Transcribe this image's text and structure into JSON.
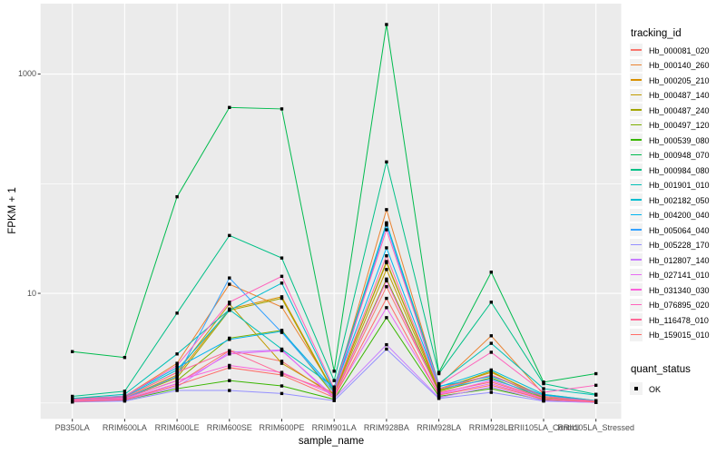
{
  "figure": {
    "background": "#FFFFFF",
    "panel_background": "#EBEBEB",
    "grid_color": "#FFFFFF",
    "tick_color": "#333333",
    "tick_label_color": "#4D4D4D",
    "point_color": "#000000"
  },
  "axes": {
    "x_title": "sample_name",
    "y_title": "FPKM + 1",
    "y_ticks": [
      {
        "label": "1000",
        "value": 1000
      },
      {
        "label": "10",
        "value": 10
      }
    ]
  },
  "legend": {
    "color_title": "tracking_id",
    "shape_title": "quant_status",
    "shape_items": [
      {
        "label": "OK"
      }
    ]
  },
  "chart_data": {
    "type": "line",
    "title": "",
    "xlabel": "sample_name",
    "ylabel": "FPKM + 1",
    "y_scale": "log10",
    "ylim": [
      0.72,
      4400
    ],
    "y_major_breaks": [
      10,
      1000
    ],
    "y_minor_breaks": [
      1,
      100
    ],
    "grid": true,
    "legend_position": "right",
    "point_shape": "filled-square",
    "quant_status_value": "OK",
    "categories": [
      "PB350LA",
      "RRIM600LA",
      "RRIM600LE",
      "RRIM600SE",
      "RRIM600PE",
      "RRIM901LA",
      "RRIM928BA",
      "RRIM928LA",
      "RRIM928LE",
      "RRII105LA_Control",
      "RRII105LA_Stressed"
    ],
    "series": [
      {
        "name": "Hb_000081_020",
        "color": "#F8766D",
        "values": [
          1.05,
          1.08,
          1.5,
          3.0,
          2.4,
          1.15,
          11.5,
          1.25,
          1.55,
          1.1,
          1.03
        ]
      },
      {
        "name": "Hb_000140_260",
        "color": "#EA8331",
        "values": [
          1.1,
          1.15,
          2.3,
          12.1,
          7.5,
          1.3,
          58,
          1.45,
          4.1,
          1.2,
          1.05
        ]
      },
      {
        "name": "Hb_000205_210",
        "color": "#D89000",
        "values": [
          1.06,
          1.1,
          1.8,
          7.2,
          9.3,
          1.25,
          19,
          1.35,
          1.9,
          1.15,
          1.03
        ]
      },
      {
        "name": "Hb_000487_140",
        "color": "#C09B00",
        "values": [
          1.08,
          1.12,
          1.9,
          8.0,
          2.3,
          1.2,
          16.5,
          1.3,
          1.8,
          1.12,
          1.03
        ]
      },
      {
        "name": "Hb_000487_240",
        "color": "#A3A500",
        "values": [
          1.05,
          1.1,
          1.7,
          7.0,
          9.0,
          1.22,
          19.5,
          1.32,
          1.95,
          1.1,
          1.02
        ]
      },
      {
        "name": "Hb_000497_120",
        "color": "#7CAE00",
        "values": [
          1.07,
          1.1,
          1.6,
          3.9,
          4.6,
          1.18,
          13.5,
          1.28,
          1.7,
          1.1,
          1.02
        ]
      },
      {
        "name": "Hb_000539_080",
        "color": "#39B600",
        "values": [
          1.03,
          1.06,
          1.35,
          1.6,
          1.43,
          1.08,
          6.0,
          1.15,
          1.35,
          1.06,
          1.01
        ]
      },
      {
        "name": "Hb_000948_070",
        "color": "#00BB4E",
        "values": [
          2.94,
          2.6,
          76,
          496,
          481,
          1.95,
          2830,
          1.9,
          15.6,
          1.55,
          1.85
        ]
      },
      {
        "name": "Hb_000984_080",
        "color": "#00C087",
        "values": [
          1.15,
          1.28,
          6.6,
          33.7,
          21,
          1.6,
          158,
          1.85,
          8.3,
          1.5,
          1.2
        ]
      },
      {
        "name": "Hb_001901_010",
        "color": "#00C0B5",
        "values": [
          1.1,
          1.2,
          2.8,
          7.1,
          3.1,
          1.4,
          44,
          1.5,
          3.5,
          1.35,
          1.18
        ]
      },
      {
        "name": "Hb_002182_050",
        "color": "#00BDD0",
        "values": [
          1.06,
          1.14,
          2.0,
          7.0,
          12.4,
          1.3,
          43,
          1.4,
          2.0,
          1.2,
          1.05
        ]
      },
      {
        "name": "Hb_004200_040",
        "color": "#00B4EF",
        "values": [
          1.08,
          1.16,
          2.1,
          3.8,
          4.5,
          1.32,
          26,
          1.42,
          1.75,
          1.18,
          1.04
        ]
      },
      {
        "name": "Hb_005064_040",
        "color": "#35A2FF",
        "values": [
          1.05,
          1.1,
          1.75,
          13.8,
          4.4,
          1.25,
          42,
          1.35,
          1.65,
          1.15,
          1.03
        ]
      },
      {
        "name": "Hb_005228_170",
        "color": "#9590FF",
        "values": [
          1.02,
          1.04,
          1.3,
          1.3,
          1.22,
          1.05,
          3.1,
          1.1,
          1.25,
          1.04,
          1.01
        ]
      },
      {
        "name": "Hb_012807_140",
        "color": "#C77CFF",
        "values": [
          1.03,
          1.06,
          1.4,
          2.9,
          3.05,
          1.1,
          3.4,
          1.12,
          1.4,
          1.05,
          1.01
        ]
      },
      {
        "name": "Hb_027141_010",
        "color": "#E76BF3",
        "values": [
          1.04,
          1.08,
          1.5,
          2.8,
          3.0,
          1.15,
          7.4,
          1.2,
          1.5,
          1.08,
          1.02
        ]
      },
      {
        "name": "Hb_031340_030",
        "color": "#FA62DB",
        "values": [
          1.06,
          1.1,
          1.6,
          2.2,
          1.9,
          1.18,
          13,
          1.22,
          1.6,
          1.1,
          1.03
        ]
      },
      {
        "name": "Hb_076895_020",
        "color": "#FF62BC",
        "values": [
          1.08,
          1.15,
          2.2,
          8.3,
          14.3,
          1.35,
          38,
          1.45,
          2.9,
          1.25,
          1.45
        ]
      },
      {
        "name": "Hb_116478_010",
        "color": "#FF6A98",
        "values": [
          1.06,
          1.12,
          1.9,
          3.0,
          1.85,
          1.25,
          22,
          1.35,
          1.8,
          1.15,
          1.04
        ]
      },
      {
        "name": "Hb_159015_010",
        "color": "#FF6C67",
        "values": [
          1.03,
          1.07,
          1.45,
          2.1,
          1.8,
          1.12,
          9.0,
          1.18,
          1.45,
          1.08,
          1.02
        ]
      }
    ]
  }
}
